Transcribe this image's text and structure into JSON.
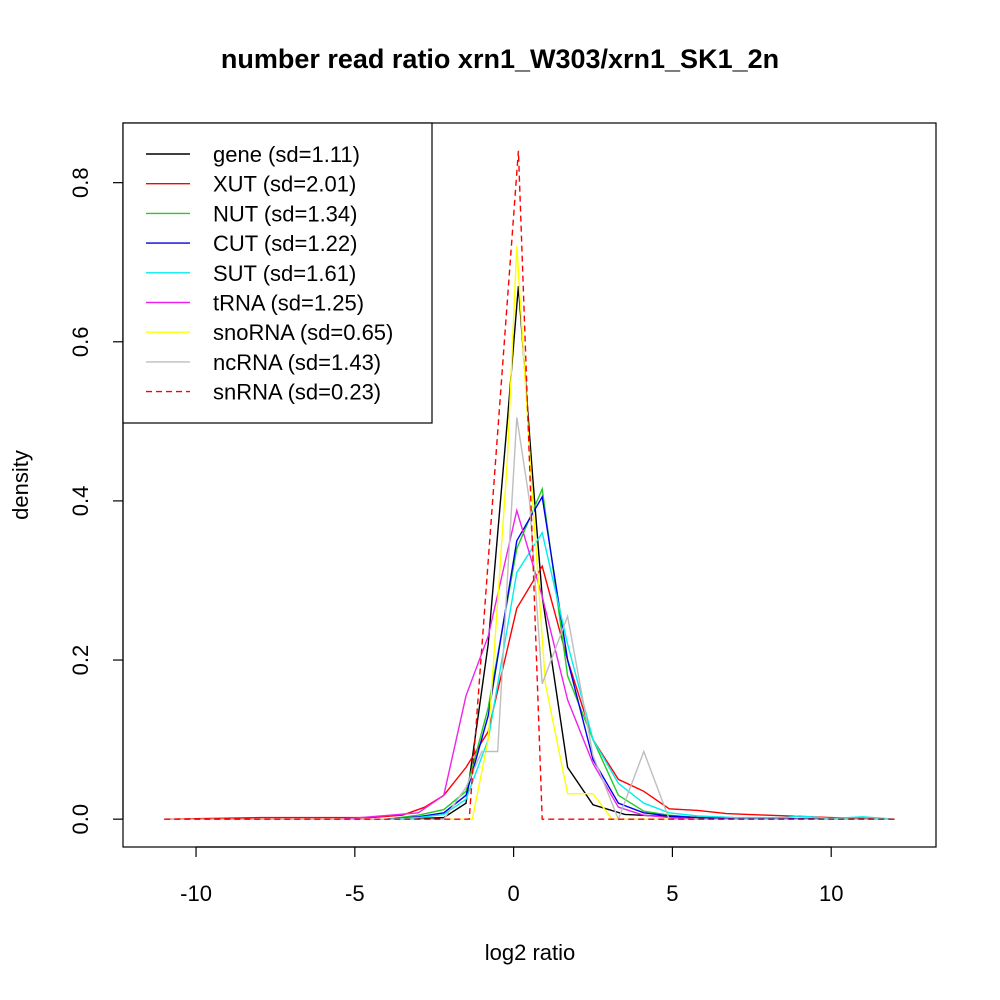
{
  "chart_data": {
    "type": "line",
    "title": "number read ratio xrn1_W303/xrn1_SK1_2n",
    "xlabel": "log2 ratio",
    "ylabel": "density",
    "xlim": [
      -12.3,
      13.3
    ],
    "ylim": [
      -0.035,
      0.875
    ],
    "x_ticks": [
      -10,
      -5,
      0,
      5,
      10
    ],
    "x_tick_labels": [
      "-10",
      "-5",
      "0",
      "5",
      "10"
    ],
    "y_ticks": [
      0.0,
      0.2,
      0.4,
      0.6,
      0.8
    ],
    "y_tick_labels": [
      "0.0",
      "0.2",
      "0.4",
      "0.6",
      "0.8"
    ],
    "grid": false,
    "legend_position": "top-left",
    "series": [
      {
        "name": "gene (sd=1.11)",
        "color": "#000000",
        "dash": false,
        "x": [
          -11,
          -8,
          -6,
          -4,
          -3.5,
          -2.2,
          -1.5,
          -0.8,
          -0.2,
          0.15,
          0.6,
          0.9,
          1.7,
          2.5,
          3.5,
          5,
          7,
          12
        ],
        "y": [
          0,
          0,
          0,
          0,
          0,
          0.002,
          0.02,
          0.22,
          0.5,
          0.67,
          0.43,
          0.28,
          0.065,
          0.018,
          0.006,
          0.003,
          0.001,
          0
        ]
      },
      {
        "name": "XUT (sd=2.01)",
        "color": "#ff0000",
        "dash": false,
        "x": [
          -11,
          -8,
          -6,
          -4.5,
          -3.5,
          -2.8,
          -2.2,
          -1.5,
          -0.8,
          0.1,
          0.9,
          1.7,
          2.5,
          3.3,
          4.1,
          4.9,
          5.8,
          6.7,
          8,
          10,
          12
        ],
        "y": [
          0,
          0.002,
          0.002,
          0.002,
          0.005,
          0.015,
          0.03,
          0.065,
          0.11,
          0.265,
          0.318,
          0.2,
          0.1,
          0.05,
          0.035,
          0.013,
          0.011,
          0.007,
          0.005,
          0.002,
          0
        ]
      },
      {
        "name": "NUT (sd=1.34)",
        "color": "#22cc22",
        "dash": false,
        "x": [
          -11,
          -5,
          -4,
          -3,
          -2.2,
          -1.5,
          -0.8,
          0.1,
          0.9,
          1.7,
          2.5,
          3.3,
          4.1,
          4.9,
          5.8,
          7,
          9,
          12
        ],
        "y": [
          0,
          0,
          0,
          0.005,
          0.012,
          0.035,
          0.14,
          0.34,
          0.415,
          0.18,
          0.1,
          0.03,
          0.01,
          0.005,
          0.002,
          0.001,
          0.001,
          0
        ]
      },
      {
        "name": "CUT (sd=1.22)",
        "color": "#0000ee",
        "dash": false,
        "x": [
          -11,
          -5,
          -4,
          -3,
          -2.2,
          -1.5,
          -0.8,
          0.1,
          0.9,
          1.7,
          2.5,
          3.3,
          4.1,
          4.9,
          5.8,
          7,
          12
        ],
        "y": [
          0,
          0,
          0,
          0.003,
          0.008,
          0.03,
          0.13,
          0.35,
          0.405,
          0.2,
          0.075,
          0.02,
          0.008,
          0.004,
          0.002,
          0.001,
          0
        ]
      },
      {
        "name": "SUT (sd=1.61)",
        "color": "#00eeee",
        "dash": false,
        "x": [
          -11,
          -5,
          -4,
          -3,
          -2.2,
          -1.5,
          -0.8,
          0.1,
          0.9,
          1.7,
          2.5,
          3.3,
          4.1,
          4.9,
          5.8,
          7,
          8.5,
          9,
          10,
          11,
          12
        ],
        "y": [
          0,
          0,
          0,
          0.002,
          0.006,
          0.025,
          0.1,
          0.31,
          0.36,
          0.22,
          0.1,
          0.045,
          0.02,
          0.008,
          0.004,
          0.002,
          0.002,
          0.004,
          0.001,
          0.003,
          0
        ]
      },
      {
        "name": "tRNA (sd=1.25)",
        "color": "#ee22ee",
        "dash": false,
        "x": [
          -11,
          -5.5,
          -4.8,
          -3,
          -2.2,
          -1.5,
          -0.8,
          0.1,
          0.9,
          1.7,
          2.5,
          3.3,
          4.1,
          4.9,
          5.8,
          12
        ],
        "y": [
          0,
          0,
          0.002,
          0.008,
          0.03,
          0.155,
          0.23,
          0.388,
          0.28,
          0.15,
          0.07,
          0.015,
          0.005,
          0.002,
          0,
          0
        ]
      },
      {
        "name": "snoRNA (sd=0.65)",
        "color": "#ffff00",
        "dash": false,
        "x": [
          -11,
          -1.3,
          -0.8,
          -0.2,
          0.1,
          0.6,
          1.0,
          1.7,
          2.5,
          3.1,
          3.5,
          12
        ],
        "y": [
          0,
          0,
          0.1,
          0.45,
          0.72,
          0.4,
          0.17,
          0.032,
          0.032,
          0,
          0,
          0
        ]
      },
      {
        "name": "ncRNA (sd=1.43)",
        "color": "#bebebe",
        "dash": false,
        "x": [
          -11,
          -2.2,
          -1.5,
          -1.0,
          -0.5,
          -0.2,
          0.1,
          0.5,
          0.9,
          1.7,
          2.5,
          3.3,
          4.1,
          4.9,
          12
        ],
        "y": [
          0,
          0,
          0.04,
          0.085,
          0.085,
          0.3,
          0.505,
          0.4,
          0.17,
          0.255,
          0.08,
          0,
          0.085,
          0,
          0
        ]
      },
      {
        "name": "snRNA (sd=0.23)",
        "color": "#ff0000",
        "dash": true,
        "x": [
          -11,
          -1.4,
          0.15,
          0.9,
          12
        ],
        "y": [
          0,
          0,
          0.84,
          0,
          0
        ]
      }
    ]
  }
}
